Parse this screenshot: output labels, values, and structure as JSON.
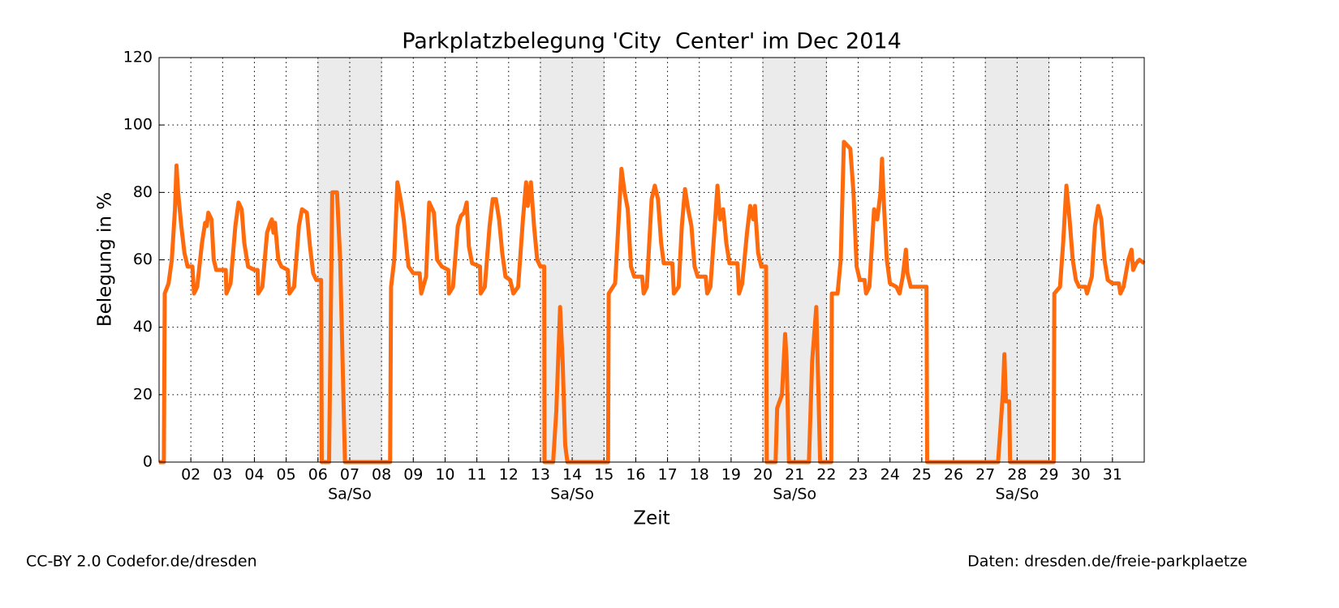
{
  "chart_data": {
    "type": "line",
    "title": "Parkplatzbelegung 'City  Center' im Dec 2014",
    "x_label": "Zeit",
    "y_label": "Belegung in %",
    "annotations": [
      "CC-BY 2.0 Codefor.de/dresden",
      "Daten: dresden.de/freie-parkplaetze"
    ],
    "shaded_spans": [
      {
        "start": 6,
        "end": 8,
        "label": "Sa/So"
      },
      {
        "start": 13,
        "end": 15,
        "label": "Sa/So"
      },
      {
        "start": 20,
        "end": 22,
        "label": "Sa/So"
      },
      {
        "start": 27,
        "end": 29,
        "label": "Sa/So"
      }
    ],
    "xlim": [
      1,
      32
    ],
    "ylim": [
      0,
      120
    ],
    "xticks": [
      {
        "value": 2,
        "label": "02"
      },
      {
        "value": 3,
        "label": "03"
      },
      {
        "value": 4,
        "label": "04"
      },
      {
        "value": 5,
        "label": "05"
      },
      {
        "value": 6,
        "label": "06"
      },
      {
        "value": 7,
        "label": "07"
      },
      {
        "value": 8,
        "label": "08"
      },
      {
        "value": 9,
        "label": "09"
      },
      10,
      11,
      12,
      13,
      14,
      15,
      16,
      17,
      18,
      19,
      20,
      21,
      22,
      23,
      24,
      25,
      26,
      27,
      28,
      29,
      30,
      31
    ],
    "yticks": [
      0,
      20,
      40,
      60,
      80,
      100,
      120
    ],
    "grid": true,
    "x": [
      1.0,
      1.15,
      1.18,
      1.3,
      1.4,
      1.5,
      1.55,
      1.6,
      1.7,
      1.8,
      1.9,
      2.05,
      2.1,
      2.2,
      2.35,
      2.45,
      2.5,
      2.55,
      2.65,
      2.72,
      2.8,
      3.1,
      3.12,
      3.25,
      3.4,
      3.5,
      3.6,
      3.68,
      3.8,
      4.0,
      4.1,
      4.12,
      4.25,
      4.4,
      4.5,
      4.55,
      4.6,
      4.65,
      4.75,
      4.85,
      5.05,
      5.1,
      5.25,
      5.4,
      5.5,
      5.65,
      5.75,
      5.85,
      5.95,
      6.1,
      6.12,
      6.35,
      6.45,
      6.6,
      6.7,
      6.85,
      8.27,
      8.3,
      8.4,
      8.5,
      8.6,
      8.7,
      8.85,
      9.0,
      9.2,
      9.25,
      9.4,
      9.5,
      9.65,
      9.75,
      9.9,
      10.1,
      10.12,
      10.25,
      10.4,
      10.5,
      10.6,
      10.68,
      10.75,
      10.85,
      11.1,
      11.12,
      11.25,
      11.4,
      11.5,
      11.6,
      11.7,
      11.8,
      11.9,
      12.05,
      12.15,
      12.3,
      12.45,
      12.55,
      12.6,
      12.7,
      12.8,
      12.9,
      13.0,
      13.12,
      13.13,
      13.4,
      13.5,
      13.62,
      13.7,
      13.78,
      13.85,
      15.13,
      15.15,
      15.35,
      15.45,
      15.55,
      15.65,
      15.75,
      15.85,
      15.95,
      16.2,
      16.25,
      16.35,
      16.5,
      16.6,
      16.7,
      16.8,
      16.88,
      17.15,
      17.2,
      17.35,
      17.45,
      17.55,
      17.65,
      17.75,
      17.85,
      17.95,
      18.2,
      18.25,
      18.35,
      18.5,
      18.57,
      18.65,
      18.75,
      18.85,
      18.95,
      19.2,
      19.25,
      19.35,
      19.5,
      19.6,
      19.7,
      19.75,
      19.85,
      19.95,
      20.1,
      20.12,
      20.4,
      20.45,
      20.6,
      20.7,
      20.75,
      20.82,
      21.45,
      21.55,
      21.68,
      21.75,
      21.8,
      22.15,
      22.17,
      22.35,
      22.45,
      22.55,
      22.75,
      22.85,
      22.95,
      23.05,
      23.2,
      23.25,
      23.35,
      23.5,
      23.6,
      23.7,
      23.75,
      23.8,
      23.9,
      24.0,
      24.2,
      24.3,
      24.4,
      24.5,
      24.55,
      24.65,
      24.8,
      25.15,
      25.17,
      27.4,
      27.55,
      27.6,
      27.65,
      27.75,
      27.78,
      29.15,
      29.17,
      29.35,
      29.45,
      29.55,
      29.65,
      29.75,
      29.85,
      29.95,
      30.15,
      30.2,
      30.35,
      30.45,
      30.55,
      30.65,
      30.75,
      30.85,
      31.0,
      31.2,
      31.25,
      31.35,
      31.5,
      31.6,
      31.65,
      31.75,
      31.85,
      32.0
    ],
    "series": [
      {
        "color": "#ff6a0d",
        "values": [
          0,
          0,
          50,
          53,
          60,
          75,
          88,
          80,
          70,
          62,
          58,
          58,
          50,
          52,
          65,
          71,
          70,
          74,
          72,
          60,
          57,
          57,
          50,
          53,
          70,
          77,
          75,
          65,
          58,
          57,
          57,
          50,
          52,
          68,
          71,
          72,
          68,
          71,
          60,
          58,
          57,
          50,
          52,
          70,
          75,
          74,
          64,
          56,
          54,
          54,
          0,
          0,
          80,
          80,
          60,
          0,
          0,
          52,
          60,
          83,
          78,
          72,
          58,
          56,
          56,
          50,
          55,
          77,
          74,
          60,
          58,
          57,
          50,
          52,
          70,
          73,
          74,
          77,
          64,
          59,
          58,
          50,
          52,
          70,
          78,
          78,
          72,
          62,
          55,
          54,
          50,
          52,
          72,
          83,
          76,
          83,
          70,
          60,
          58,
          58,
          0,
          0,
          15,
          46,
          30,
          5,
          0,
          0,
          50,
          53,
          70,
          87,
          80,
          75,
          58,
          55,
          55,
          50,
          52,
          78,
          82,
          78,
          65,
          59,
          59,
          50,
          52,
          70,
          81,
          75,
          70,
          58,
          55,
          55,
          50,
          52,
          72,
          82,
          72,
          75,
          65,
          59,
          59,
          50,
          53,
          68,
          76,
          72,
          76,
          62,
          58,
          58,
          0,
          0,
          16,
          20,
          38,
          30,
          0,
          0,
          30,
          46,
          20,
          0,
          0,
          50,
          50,
          60,
          95,
          93,
          80,
          58,
          54,
          54,
          50,
          52,
          75,
          72,
          80,
          90,
          78,
          60,
          53,
          52,
          50,
          55,
          63,
          56,
          52,
          52,
          52,
          0,
          0,
          20,
          32,
          18,
          18,
          0,
          0,
          50,
          52,
          65,
          82,
          72,
          60,
          54,
          52,
          52,
          50,
          55,
          70,
          76,
          72,
          60,
          54,
          53,
          53,
          50,
          52,
          60,
          63,
          57,
          59,
          60,
          59
        ]
      }
    ]
  }
}
